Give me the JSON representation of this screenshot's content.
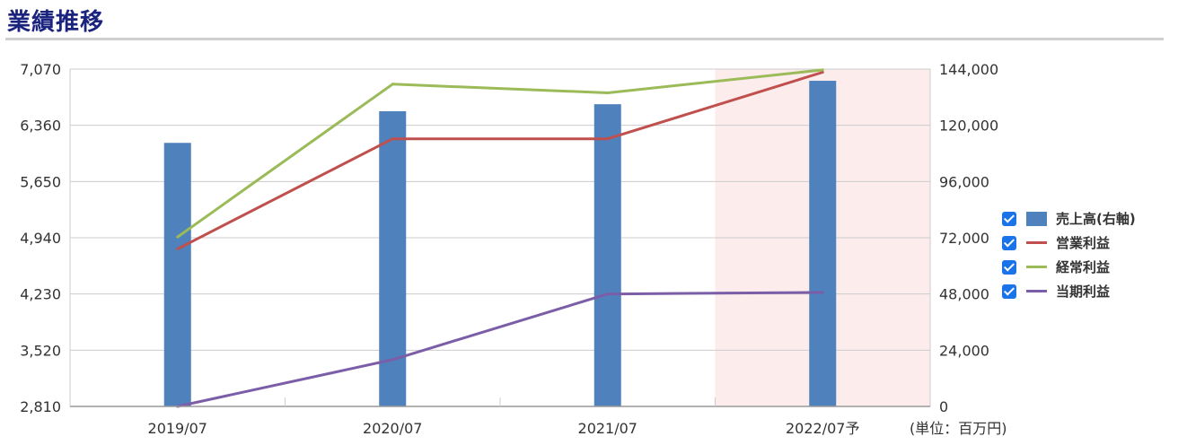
{
  "header": {
    "title": "業績推移"
  },
  "unit_note": "(単位：百万円)",
  "colors": {
    "sales": "#4f81bd",
    "operating": "#c0504d",
    "ordinary": "#9bbb59",
    "net": "#7b5ea7",
    "forecast_bg": "#fdecec",
    "checkbox": "#1a73e8"
  },
  "legend": {
    "items": [
      {
        "label": "売上高(右軸)",
        "kind": "bar",
        "color_key": "sales"
      },
      {
        "label": "営業利益",
        "kind": "line",
        "color_key": "operating"
      },
      {
        "label": "経常利益",
        "kind": "line",
        "color_key": "ordinary"
      },
      {
        "label": "当期利益",
        "kind": "line",
        "color_key": "net"
      }
    ]
  },
  "chart_data": {
    "type": "bar",
    "categories": [
      "2019/07",
      "2020/07",
      "2021/07",
      "2022/07予"
    ],
    "forecast_categories": [
      "2022/07予"
    ],
    "left_axis": {
      "ylim": [
        2810,
        7070
      ],
      "ticks": [
        "2,810",
        "3,520",
        "4,230",
        "4,940",
        "5,650",
        "6,360",
        "7,070"
      ]
    },
    "right_axis": {
      "ylim": [
        0,
        144000
      ],
      "ticks": [
        "0",
        "24,000",
        "48,000",
        "72,000",
        "96,000",
        "120,000",
        "144,000"
      ]
    },
    "series": [
      {
        "name": "売上高(右軸)",
        "type": "bar",
        "axis": "right",
        "values": [
          112500,
          126000,
          129000,
          139000
        ]
      },
      {
        "name": "営業利益",
        "type": "line",
        "axis": "left",
        "values": [
          4800,
          6190,
          6190,
          7030
        ]
      },
      {
        "name": "経常利益",
        "type": "line",
        "axis": "left",
        "values": [
          4950,
          6880,
          6770,
          7060
        ]
      },
      {
        "name": "当期利益",
        "type": "line",
        "axis": "left",
        "values": [
          2810,
          3400,
          4230,
          4250
        ]
      }
    ],
    "grid": true,
    "legend_position": "right"
  }
}
